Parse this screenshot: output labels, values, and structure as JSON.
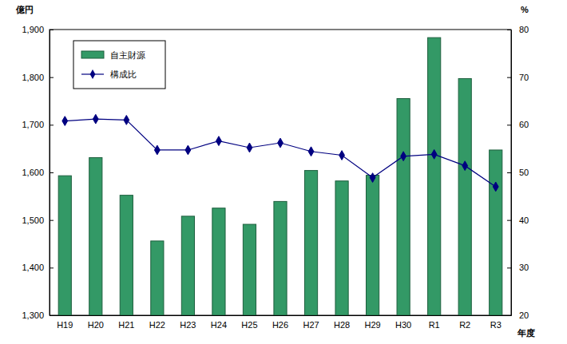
{
  "chart_data": {
    "type": "bar",
    "ylabel": "億円",
    "y2label": "%",
    "xlabel": "年度",
    "categories": [
      "H19",
      "H20",
      "H21",
      "H22",
      "H23",
      "H24",
      "H25",
      "H26",
      "H27",
      "H28",
      "H29",
      "H30",
      "R1",
      "R2",
      "R3"
    ],
    "series": [
      {
        "name": "自主財源",
        "type": "bar",
        "color": "#339966",
        "values": [
          1593,
          1631,
          1552,
          1456,
          1508,
          1525,
          1491,
          1539,
          1604,
          1582,
          1594,
          1755,
          1883,
          1797,
          1647
        ]
      },
      {
        "name": "構成比",
        "type": "line",
        "axis": "y2",
        "color": "#000080",
        "marker": "diamond",
        "line_style": "solid",
        "values": [
          60.8,
          61.2,
          61.0,
          54.7,
          54.7,
          56.6,
          55.2,
          56.2,
          54.4,
          53.6,
          48.9,
          53.4,
          53.8,
          51.4,
          47.0
        ]
      }
    ],
    "ylim": [
      1300,
      1900
    ],
    "yticks": [
      {
        "value": 1300,
        "label": "1,300"
      },
      {
        "value": 1400,
        "label": "1,400"
      },
      {
        "value": 1500,
        "label": "1,500"
      },
      {
        "value": 1600,
        "label": "1,600"
      },
      {
        "value": 1700,
        "label": "1,700"
      },
      {
        "value": 1800,
        "label": "1,800"
      },
      {
        "value": 1900,
        "label": "1,900"
      }
    ],
    "y2lim": [
      20,
      80
    ],
    "y2ticks": [
      20,
      30,
      40,
      50,
      60,
      70,
      80
    ],
    "grid": false,
    "legend": "upper left"
  }
}
